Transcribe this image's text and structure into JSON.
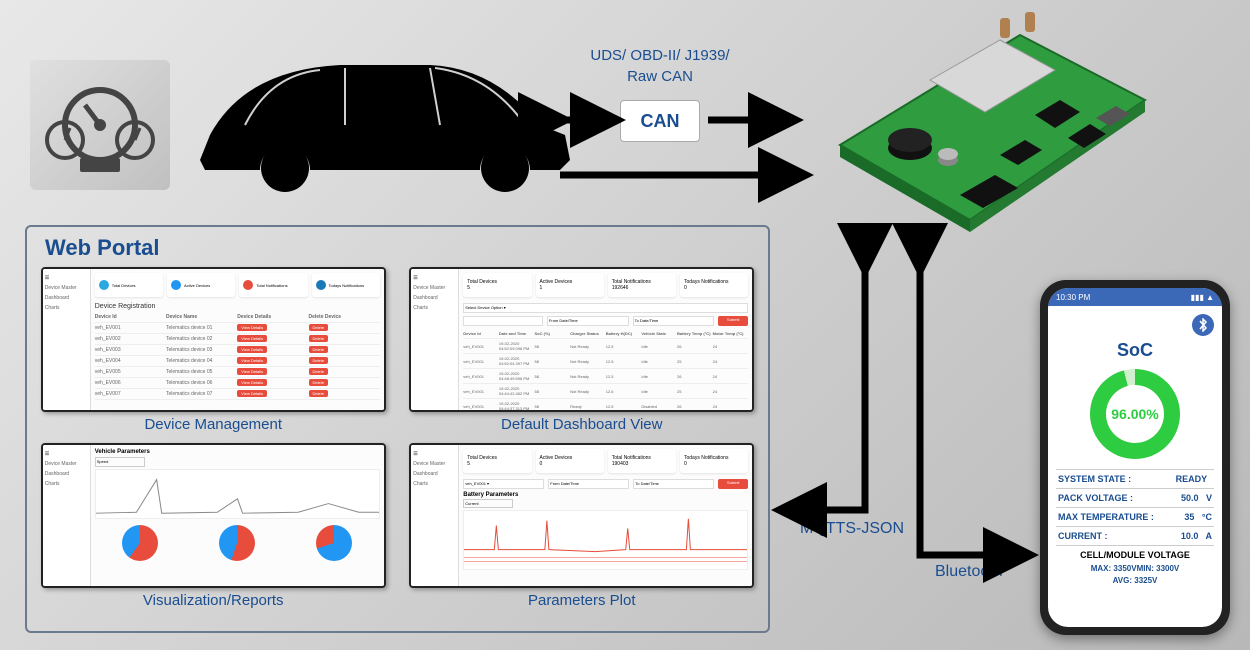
{
  "colors": {
    "brand_blue": "#1a4d8f",
    "arrow": "#000000",
    "pcb_green": "#2e9c3f",
    "red_btn": "#e74c3c",
    "soc_green": "#2ecc40"
  },
  "can": {
    "protocols_line1": "UDS/ OBD-II/ J1939/",
    "protocols_line2": "Raw CAN",
    "label": "CAN"
  },
  "portal": {
    "title": "Web Portal",
    "panels": {
      "device_mgmt": {
        "caption": "Device Management",
        "section_title": "Device Registration",
        "sidebar": [
          "Device Master",
          "Dashboard",
          "Charts"
        ],
        "stat_dots": [
          "#2aa9e0",
          "#2196f3",
          "#e74c3c",
          "#1a7ab8"
        ],
        "stat_labels": [
          "Total Devices",
          "Active Devices",
          "Total Notifications",
          "Todays Notifications"
        ],
        "columns": [
          "Device Id",
          "Device Name",
          "Device Details",
          "Delete Device"
        ],
        "rows": [
          [
            "veh_EV001",
            "Telematics device 01"
          ],
          [
            "veh_EV002",
            "Telematics device 02"
          ],
          [
            "veh_EV003",
            "Telematics device 03"
          ],
          [
            "veh_EV004",
            "Telematics device 04"
          ],
          [
            "veh_EV005",
            "Telematics device 05"
          ],
          [
            "veh_EV006",
            "Telematics device 06"
          ],
          [
            "veh_EV007",
            "Telematics device 07"
          ]
        ]
      },
      "dashboard": {
        "caption": "Default Dashboard View",
        "columns": [
          "Device Id",
          "Date and Time",
          "SoC (%)",
          "Charger Status",
          "Battery H(DC)",
          "Vehicle State",
          "Battery Temp (°C)",
          "Motor Temp (°C)"
        ],
        "rows": [
          [
            "veh_EV001",
            "19-02-2020 04:52:09.096 PM",
            "58",
            "Not Ready",
            "12.5",
            "Idle",
            "26",
            "24"
          ],
          [
            "veh_EV001",
            "19-02-2020 04:52:04.397 PM",
            "58",
            "Not Ready",
            "12.5",
            "Idle",
            "25",
            "24"
          ],
          [
            "veh_EV001",
            "19-02-2020 04:48:49.596 PM",
            "58",
            "Not Ready",
            "12.5",
            "Idle",
            "26",
            "24"
          ],
          [
            "veh_EV001",
            "19-02-2020 04:44:42.462 PM",
            "58",
            "Not Ready",
            "12.6",
            "Idle",
            "25",
            "24"
          ],
          [
            "veh_EV001",
            "19-02-2020 04:44:37.313 PM",
            "58",
            "Ready",
            "12.5",
            "Disabled",
            "26",
            "24"
          ],
          [
            "veh_EV001",
            "19-02-2020 04:44:47.078 PM",
            "58",
            "Not Ready",
            "12.5",
            "Idle",
            "26",
            "24"
          ]
        ]
      },
      "viz": {
        "caption": "Visualization/Reports",
        "chart_title": "Vehicle Parameters",
        "dropdown": "Speed",
        "pies": [
          {
            "segments": [
              {
                "c": "#e74c3c",
                "p": 60
              },
              {
                "c": "#2196f3",
                "p": 40
              }
            ]
          },
          {
            "segments": [
              {
                "c": "#e74c3c",
                "p": 55
              },
              {
                "c": "#2196f3",
                "p": 45
              }
            ]
          },
          {
            "segments": [
              {
                "c": "#2196f3",
                "p": 70
              },
              {
                "c": "#e74c3c",
                "p": 30
              }
            ]
          }
        ]
      },
      "params": {
        "caption": "Parameters Plot",
        "chart_title": "Battery Parameters",
        "dropdown": "Current"
      }
    }
  },
  "connections": {
    "mqtt_label": "MQTTS-JSON",
    "bluetooth_label": "Bluetooth"
  },
  "phone": {
    "status_time": "10:30 PM",
    "soc_title": "SoC",
    "soc_value": "96.00%",
    "soc_percent": 96,
    "rows": [
      {
        "label": "SYSTEM STATE :",
        "value": "READY",
        "unit": ""
      },
      {
        "label": "PACK VOLTAGE :",
        "value": "50.0",
        "unit": "V"
      },
      {
        "label": "MAX TEMPERATURE :",
        "value": "35",
        "unit": "°C"
      },
      {
        "label": "CURRENT :",
        "value": "10.0",
        "unit": "A"
      }
    ],
    "cell_header": "CELL/MODULE VOLTAGE",
    "cell_max_label": "MAX:",
    "cell_max": "3350V",
    "cell_min_label": "MIN:",
    "cell_min": "3300V",
    "cell_avg_label": "AVG:",
    "cell_avg": "3325V"
  }
}
